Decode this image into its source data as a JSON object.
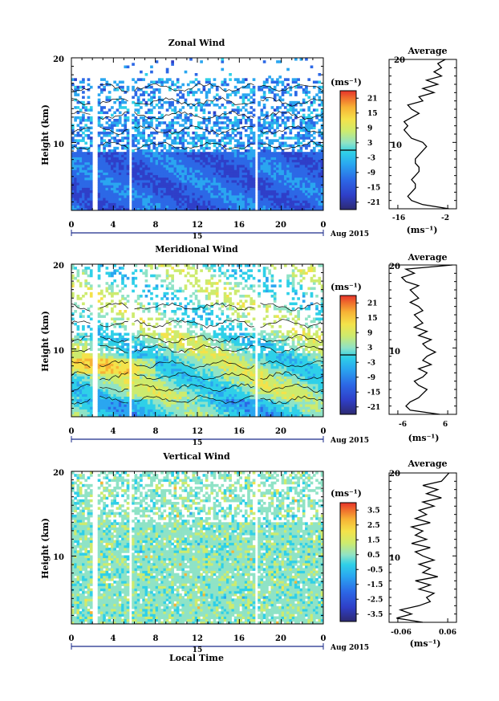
{
  "chart_data": [
    {
      "type": "heatmap",
      "title": "Zonal Wind",
      "xlabel": "",
      "ylabel": "Height (km)",
      "xlim": [
        0,
        24
      ],
      "ylim": [
        2,
        20
      ],
      "xticks": [
        "0",
        "4",
        "8",
        "12",
        "16",
        "20",
        "0"
      ],
      "yticks": [
        "10",
        "20"
      ],
      "date_axis_label": "15",
      "date_suffix": "Aug 2015",
      "colorbar": {
        "unit": "(ms⁻¹)",
        "range": [
          -24,
          24
        ],
        "ticks": [
          "21",
          "15",
          "9",
          "3",
          "-3",
          "-9",
          "-15",
          "-21"
        ],
        "zero_line": true
      },
      "profile": {
        "title": "Average",
        "xlabel": "(ms⁻¹)",
        "xlim": [
          -18,
          0
        ],
        "xticks": [
          "-16",
          "-2"
        ],
        "yticks": [
          "10",
          "20"
        ],
        "height_km": [
          2.0,
          2.5,
          3.0,
          3.5,
          4.0,
          4.5,
          5.0,
          5.5,
          6.0,
          6.5,
          7.0,
          7.5,
          8.0,
          8.5,
          9.0,
          9.5,
          10.0,
          10.5,
          11.0,
          11.5,
          12.0,
          12.5,
          13.0,
          13.5,
          14.0,
          14.5,
          15.0,
          15.5,
          16.0,
          16.5,
          17.0,
          17.5,
          18.0,
          18.5,
          19.0,
          19.5,
          20.0
        ],
        "value": [
          -2,
          -9,
          -12,
          -13,
          -12,
          -11,
          -11,
          -12,
          -11,
          -10,
          -10,
          -11,
          -11,
          -10,
          -9,
          -8,
          -9,
          -12,
          -13,
          -14,
          -13,
          -14,
          -12,
          -10,
          -12,
          -13,
          -9,
          -10,
          -6,
          -9,
          -5,
          -8,
          -4,
          -6,
          -4,
          -5,
          -3
        ]
      }
    },
    {
      "type": "heatmap",
      "title": "Meridional Wind",
      "xlabel": "",
      "ylabel": "Height (km)",
      "xlim": [
        0,
        24
      ],
      "ylim": [
        2,
        20
      ],
      "xticks": [
        "0",
        "4",
        "8",
        "12",
        "16",
        "20",
        "0"
      ],
      "yticks": [
        "10",
        "20"
      ],
      "date_axis_label": "15",
      "date_suffix": "Aug 2015",
      "colorbar": {
        "unit": "(ms⁻¹)",
        "range": [
          -24,
          24
        ],
        "ticks": [
          "21",
          "15",
          "9",
          "3",
          "-3",
          "-9",
          "-15",
          "-21"
        ],
        "zero_line": true
      },
      "profile": {
        "title": "Average",
        "xlabel": "(ms⁻¹)",
        "xlim": [
          -8,
          8
        ],
        "xticks": [
          "-6",
          "6"
        ],
        "yticks": [
          "10",
          "20"
        ],
        "height_km": [
          2.0,
          2.5,
          3.0,
          3.5,
          4.0,
          4.5,
          5.0,
          5.5,
          6.0,
          6.5,
          7.0,
          7.5,
          8.0,
          8.5,
          9.0,
          9.5,
          10.0,
          10.5,
          11.0,
          11.5,
          12.0,
          12.5,
          13.0,
          13.5,
          14.0,
          14.5,
          15.0,
          15.5,
          16.0,
          16.5,
          17.0,
          17.5,
          18.0,
          18.5,
          19.0,
          19.5,
          20.0
        ],
        "value": [
          4,
          -3,
          -4,
          -3,
          -1,
          0,
          1,
          -1,
          -2,
          0,
          1,
          -1,
          2,
          0,
          1,
          3,
          1,
          0,
          2,
          -1,
          1,
          -2,
          0,
          -1,
          -2,
          0,
          -1,
          -3,
          -1,
          -2,
          -3,
          -1,
          -4,
          -5,
          -2,
          -4,
          7
        ]
      }
    },
    {
      "type": "heatmap",
      "title": "Vertical Wind",
      "xlabel": "Local Time",
      "ylabel": "Height (km)",
      "xlim": [
        0,
        24
      ],
      "ylim": [
        2,
        20
      ],
      "xticks": [
        "0",
        "4",
        "8",
        "12",
        "16",
        "20",
        "0"
      ],
      "yticks": [
        "10",
        "20"
      ],
      "date_axis_label": "15",
      "date_suffix": "Aug 2015",
      "colorbar": {
        "unit": "(ms⁻¹)",
        "range": [
          -4,
          4
        ],
        "ticks": [
          "3.5",
          "2.5",
          "1.5",
          "0.5",
          "-0.5",
          "-1.5",
          "-2.5",
          "-3.5"
        ],
        "zero_line": false
      },
      "profile": {
        "title": "Average",
        "xlabel": "(ms⁻¹)",
        "xlim": [
          -0.09,
          0.09
        ],
        "xticks": [
          "-0.06",
          "0.06"
        ],
        "yticks": [
          "10",
          "20"
        ],
        "height_km": [
          2.0,
          2.5,
          3.0,
          3.5,
          4.0,
          4.5,
          5.0,
          5.5,
          6.0,
          6.5,
          7.0,
          7.5,
          8.0,
          8.5,
          9.0,
          9.5,
          10.0,
          10.5,
          11.0,
          11.5,
          12.0,
          12.5,
          13.0,
          13.5,
          14.0,
          14.5,
          15.0,
          15.5,
          16.0,
          16.5,
          17.0,
          17.5,
          18.0,
          18.5,
          19.0,
          19.5,
          20.0
        ],
        "value": [
          0.0,
          -0.07,
          -0.03,
          -0.06,
          -0.01,
          0.02,
          0.01,
          0.03,
          -0.01,
          0.02,
          -0.02,
          0.04,
          0.0,
          0.02,
          -0.01,
          0.03,
          0.0,
          -0.02,
          0.02,
          -0.03,
          0.01,
          -0.02,
          0.0,
          -0.03,
          0.02,
          -0.02,
          0.01,
          -0.01,
          0.03,
          0.0,
          0.05,
          0.01,
          0.04,
          0.0,
          0.05,
          0.06,
          0.07
        ]
      }
    }
  ],
  "colors": {
    "palette": [
      "#2d2a72",
      "#2f3fc8",
      "#2c68e6",
      "#2aa6f0",
      "#2fd0e8",
      "#8fe3c6",
      "#cdeb6e",
      "#f4e24a",
      "#f7b335",
      "#ef6d2c",
      "#e6322a"
    ],
    "contour": "#000000"
  }
}
